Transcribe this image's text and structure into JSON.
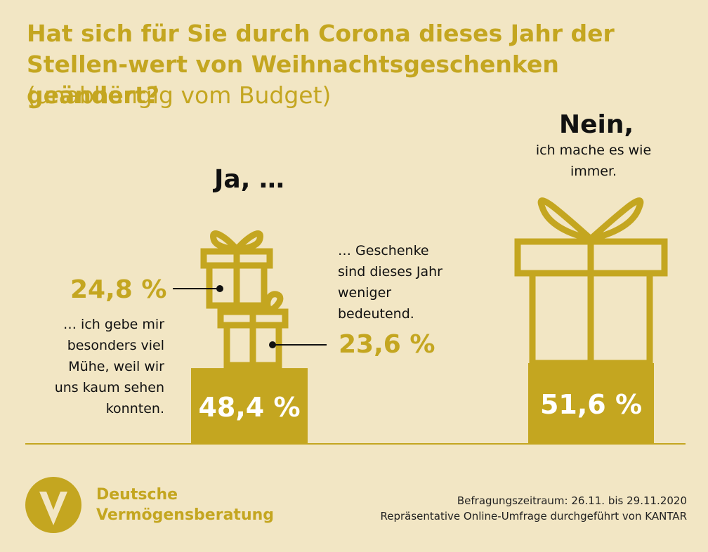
{
  "header": {
    "title": "Hat sich für Sie durch Corona dieses Jahr der Stellen-wert von Weihnachtsgeschenken geändert?",
    "subtitle": "(unabhängig vom Budget)"
  },
  "chart_data": {
    "type": "bar",
    "categories": [
      "Ja, …",
      "Nein,"
    ],
    "values": [
      48.4,
      51.6
    ],
    "value_labels": [
      "48,4 %",
      "51,6 %"
    ],
    "yes_breakdown": [
      {
        "value": 24.8,
        "label": "24,8 %",
        "text": "… ich gebe mir besonders viel Mühe, weil wir uns kaum sehen konnten."
      },
      {
        "value": 23.6,
        "label": "23,6 %",
        "text": "… Geschenke sind dieses Jahr weniger bedeutend."
      }
    ],
    "no_text": "ich mache es wie immer.",
    "accent_color": "#c4a620",
    "background_color": "#f2e6c4"
  },
  "brand": {
    "line1": "Deutsche",
    "line2": "Vermögensberatung",
    "icon": "dvag-logo-icon"
  },
  "footer": {
    "line1": "Befragungszeitraum: 26.11. bis 29.11.2020",
    "line2": "Repräsentative Online-Umfrage durchgeführt von KANTAR"
  }
}
